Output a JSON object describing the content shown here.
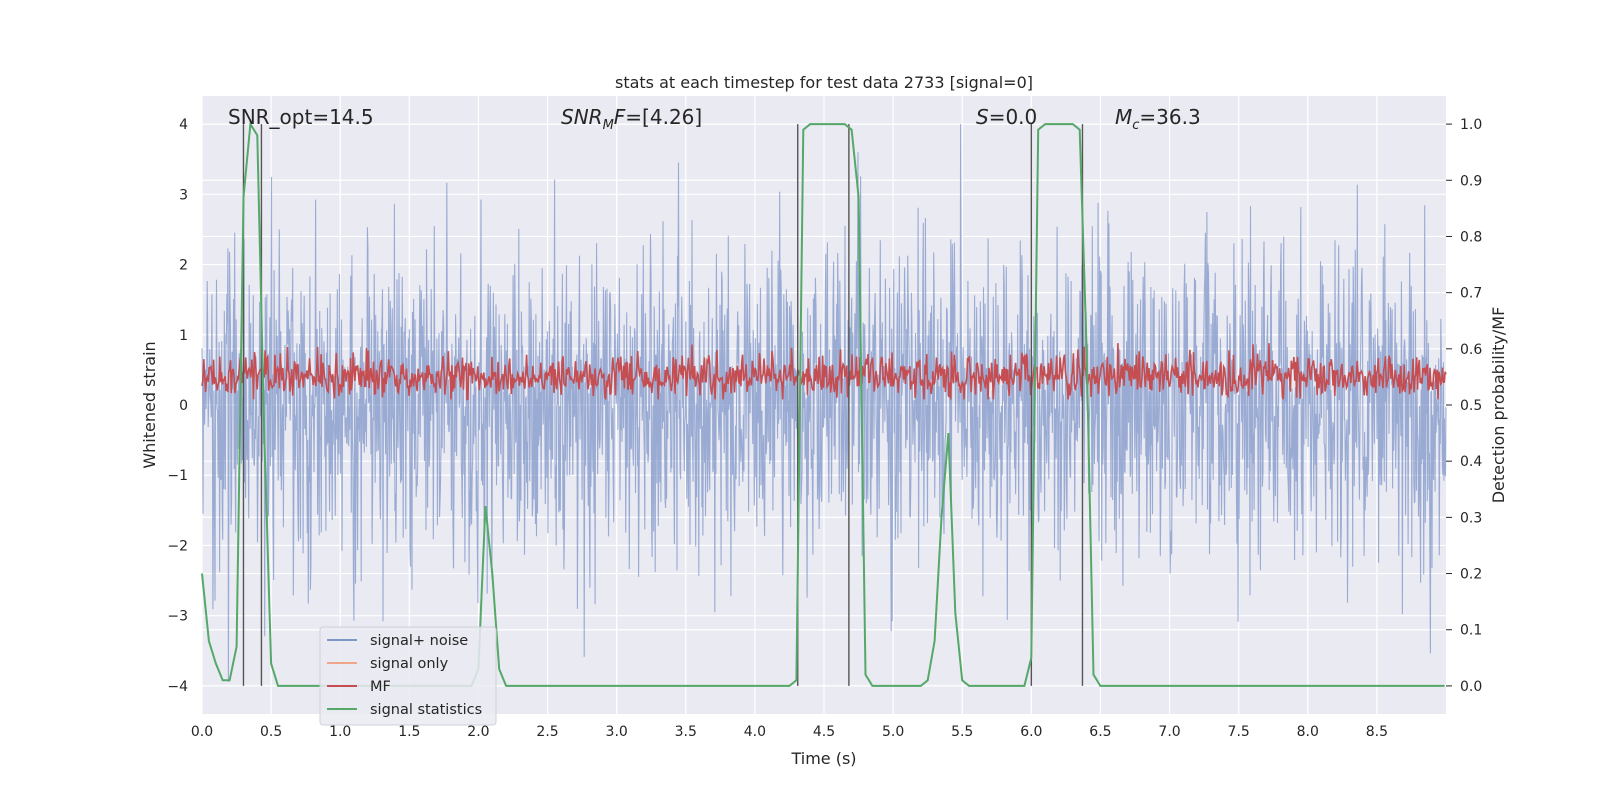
{
  "chart_data": {
    "type": "line",
    "title": "stats at each timestep for test data 2733 [signal=0]",
    "xlabel": "Time (s)",
    "ylabel": "Whitened strain",
    "ylabel_right": "Detection probability/MF",
    "xlim": [
      0,
      9.0
    ],
    "ylim": [
      -4.4,
      4.4
    ],
    "ylim_right": [
      -0.05,
      1.05
    ],
    "x_ticks": [
      "0.0",
      "0.5",
      "1.0",
      "1.5",
      "2.0",
      "2.5",
      "3.0",
      "3.5",
      "4.0",
      "4.5",
      "5.0",
      "5.5",
      "6.0",
      "6.5",
      "7.0",
      "7.5",
      "8.0",
      "8.5"
    ],
    "y_ticks": [
      "−4",
      "−3",
      "−2",
      "−1",
      "0",
      "1",
      "2",
      "3",
      "4"
    ],
    "y_ticks_right": [
      "0.0",
      "0.1",
      "0.2",
      "0.3",
      "0.4",
      "0.5",
      "0.6",
      "0.7",
      "0.8",
      "0.9",
      "1.0"
    ],
    "grid": true,
    "legend_position": "lower-left",
    "annotations": {
      "snr_opt": "SNR_opt=14.5",
      "snr_mf_italic": "SNR",
      "snr_mf_sub": "M",
      "snr_mf_rest_italic": "F",
      "snr_mf_value": "=[4.26]",
      "s_italic": "S",
      "s_value": "=0.0",
      "mc_italic": "M",
      "mc_sub": "c",
      "mc_value": "=36.3"
    },
    "vertical_lines": [
      0.3,
      0.43,
      4.31,
      4.68,
      6.0,
      6.37
    ],
    "series": [
      {
        "name": "signal+ noise",
        "color": "#7f96c8",
        "axis": "left",
        "envelope": {
          "typical_abs": 1.8,
          "max": 4.0,
          "min": -4.0
        }
      },
      {
        "name": "signal only",
        "color": "#eea78b",
        "axis": "left",
        "values": []
      },
      {
        "name": "MF",
        "color": "#c44e52",
        "axis": "right",
        "envelope": {
          "mean": 0.55,
          "min": 0.51,
          "max": 0.61
        }
      },
      {
        "name": "signal statistics",
        "color": "#55a868",
        "axis": "right",
        "x": [
          0.0,
          0.05,
          0.1,
          0.15,
          0.2,
          0.25,
          0.3,
          0.35,
          0.4,
          0.45,
          0.5,
          0.55,
          0.6,
          1.9,
          1.95,
          2.0,
          2.05,
          2.1,
          2.15,
          2.2,
          2.3,
          2.4,
          4.25,
          4.3,
          4.35,
          4.4,
          4.45,
          4.5,
          4.55,
          4.6,
          4.65,
          4.7,
          4.75,
          4.8,
          4.85,
          4.9,
          5.2,
          5.25,
          5.3,
          5.35,
          5.4,
          5.45,
          5.5,
          5.55,
          5.65,
          5.95,
          6.0,
          6.05,
          6.1,
          6.15,
          6.2,
          6.25,
          6.3,
          6.35,
          6.4,
          6.45,
          6.5,
          6.55,
          6.6,
          8.99
        ],
        "y": [
          0.2,
          0.08,
          0.04,
          0.01,
          0.01,
          0.07,
          0.87,
          1.0,
          0.98,
          0.45,
          0.04,
          0.0,
          0.0,
          0.0,
          0.0,
          0.03,
          0.32,
          0.2,
          0.03,
          0.0,
          0.0,
          0.0,
          0.0,
          0.01,
          0.99,
          1.0,
          1.0,
          1.0,
          1.0,
          1.0,
          1.0,
          0.99,
          0.87,
          0.02,
          0.0,
          0.0,
          0.0,
          0.01,
          0.08,
          0.3,
          0.45,
          0.13,
          0.01,
          0.0,
          0.0,
          0.0,
          0.05,
          0.99,
          1.0,
          1.0,
          1.0,
          1.0,
          1.0,
          0.99,
          0.6,
          0.02,
          0.0,
          0.0,
          0.0,
          0.0
        ]
      }
    ]
  }
}
